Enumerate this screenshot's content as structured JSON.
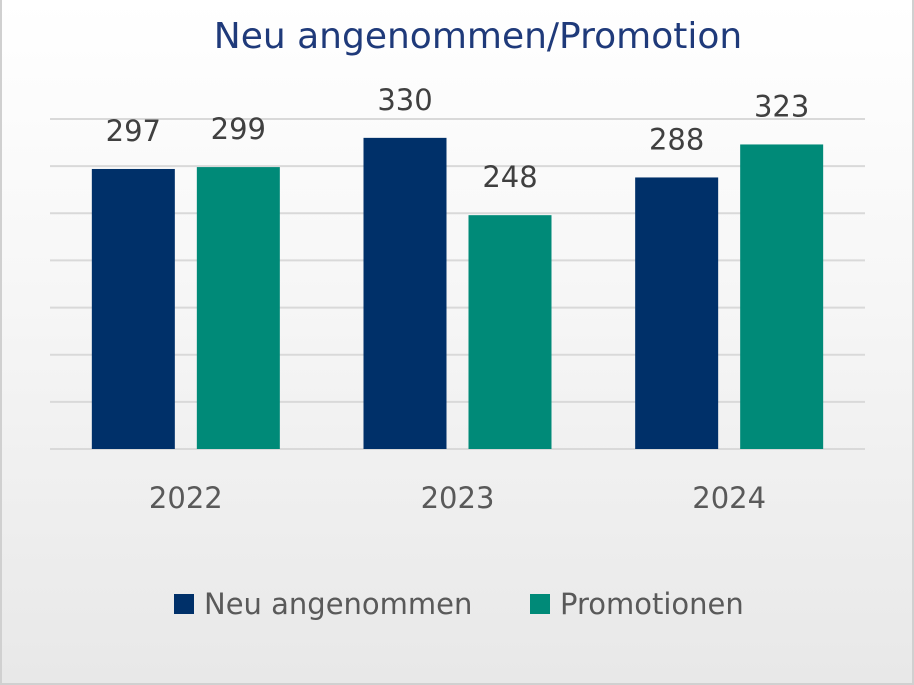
{
  "chart_data": {
    "type": "bar",
    "title": "Neu angenommen/Promotion",
    "categories": [
      "2022",
      "2023",
      "2024"
    ],
    "series": [
      {
        "name": "Neu angenommen",
        "values": [
          297,
          330,
          288
        ],
        "color": "#003069"
      },
      {
        "name": "Promotionen",
        "values": [
          299,
          248,
          323
        ],
        "color": "#008a78"
      }
    ],
    "ylim": [
      0,
      350
    ],
    "ytick_step": 50,
    "ytick_labels_shown": false,
    "grid": true,
    "data_labels": true,
    "legend": "bottom",
    "title_color": "#1f3a7a"
  }
}
